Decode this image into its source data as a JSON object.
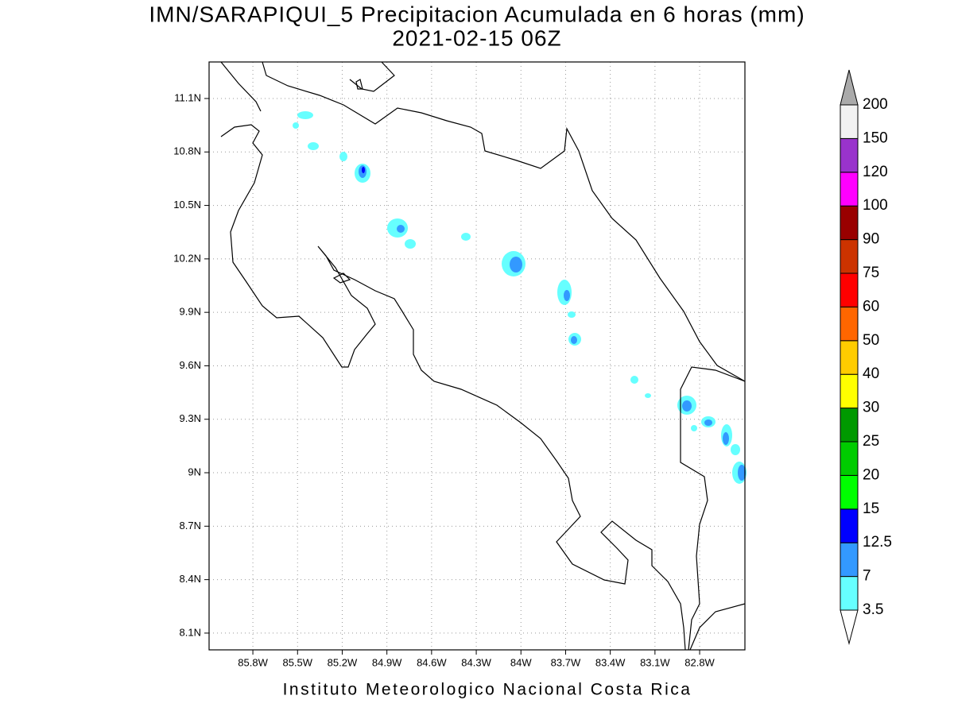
{
  "title": "IMN/SARAPIQUI_5 Precipitacion Acumulada en 6 horas (mm)",
  "subtitle": "2021-02-15 06Z",
  "footer": "Instituto Meteorologico Nacional Costa Rica",
  "map": {
    "xlim": [
      -86.094,
      -82.496
    ],
    "ylim": [
      8.006,
      11.305
    ],
    "xticks": [
      {
        "value": -85.8,
        "label": "85.8W"
      },
      {
        "value": -85.5,
        "label": "85.5W"
      },
      {
        "value": -85.2,
        "label": "85.2W"
      },
      {
        "value": -84.9,
        "label": "84.9W"
      },
      {
        "value": -84.6,
        "label": "84.6W"
      },
      {
        "value": -84.3,
        "label": "84.3W"
      },
      {
        "value": -84,
        "label": "84W"
      },
      {
        "value": -83.7,
        "label": "83.7W"
      },
      {
        "value": -83.4,
        "label": "83.4W"
      },
      {
        "value": -83.1,
        "label": "83.1W"
      },
      {
        "value": -82.8,
        "label": "82.8W"
      }
    ],
    "yticks": [
      {
        "value": 8.1,
        "label": "8.1N"
      },
      {
        "value": 8.4,
        "label": "8.4N"
      },
      {
        "value": 8.7,
        "label": "8.7N"
      },
      {
        "value": 9,
        "label": "9N"
      },
      {
        "value": 9.3,
        "label": "9.3N"
      },
      {
        "value": 9.6,
        "label": "9.6N"
      },
      {
        "value": 9.9,
        "label": "9.9N"
      },
      {
        "value": 10.2,
        "label": "10.2N"
      },
      {
        "value": 10.5,
        "label": "10.5N"
      },
      {
        "value": 10.8,
        "label": "10.8N"
      },
      {
        "value": 11.1,
        "label": "11.1N"
      }
    ],
    "grid": true
  },
  "colorbar": {
    "levels": [
      3.5,
      7,
      12.5,
      15,
      20,
      25,
      30,
      40,
      50,
      60,
      75,
      90,
      100,
      120,
      150,
      200
    ],
    "colors": [
      "#66ffff",
      "#3399ff",
      "#0000ff",
      "#00ff00",
      "#00cc00",
      "#009900",
      "#ffff00",
      "#ffcc00",
      "#ff6600",
      "#ff0000",
      "#cc3300",
      "#990000",
      "#ff00ff",
      "#9933cc",
      "#f2f2f2"
    ],
    "under_color": "#ffffff",
    "over_color": "#aaaaaa"
  }
}
